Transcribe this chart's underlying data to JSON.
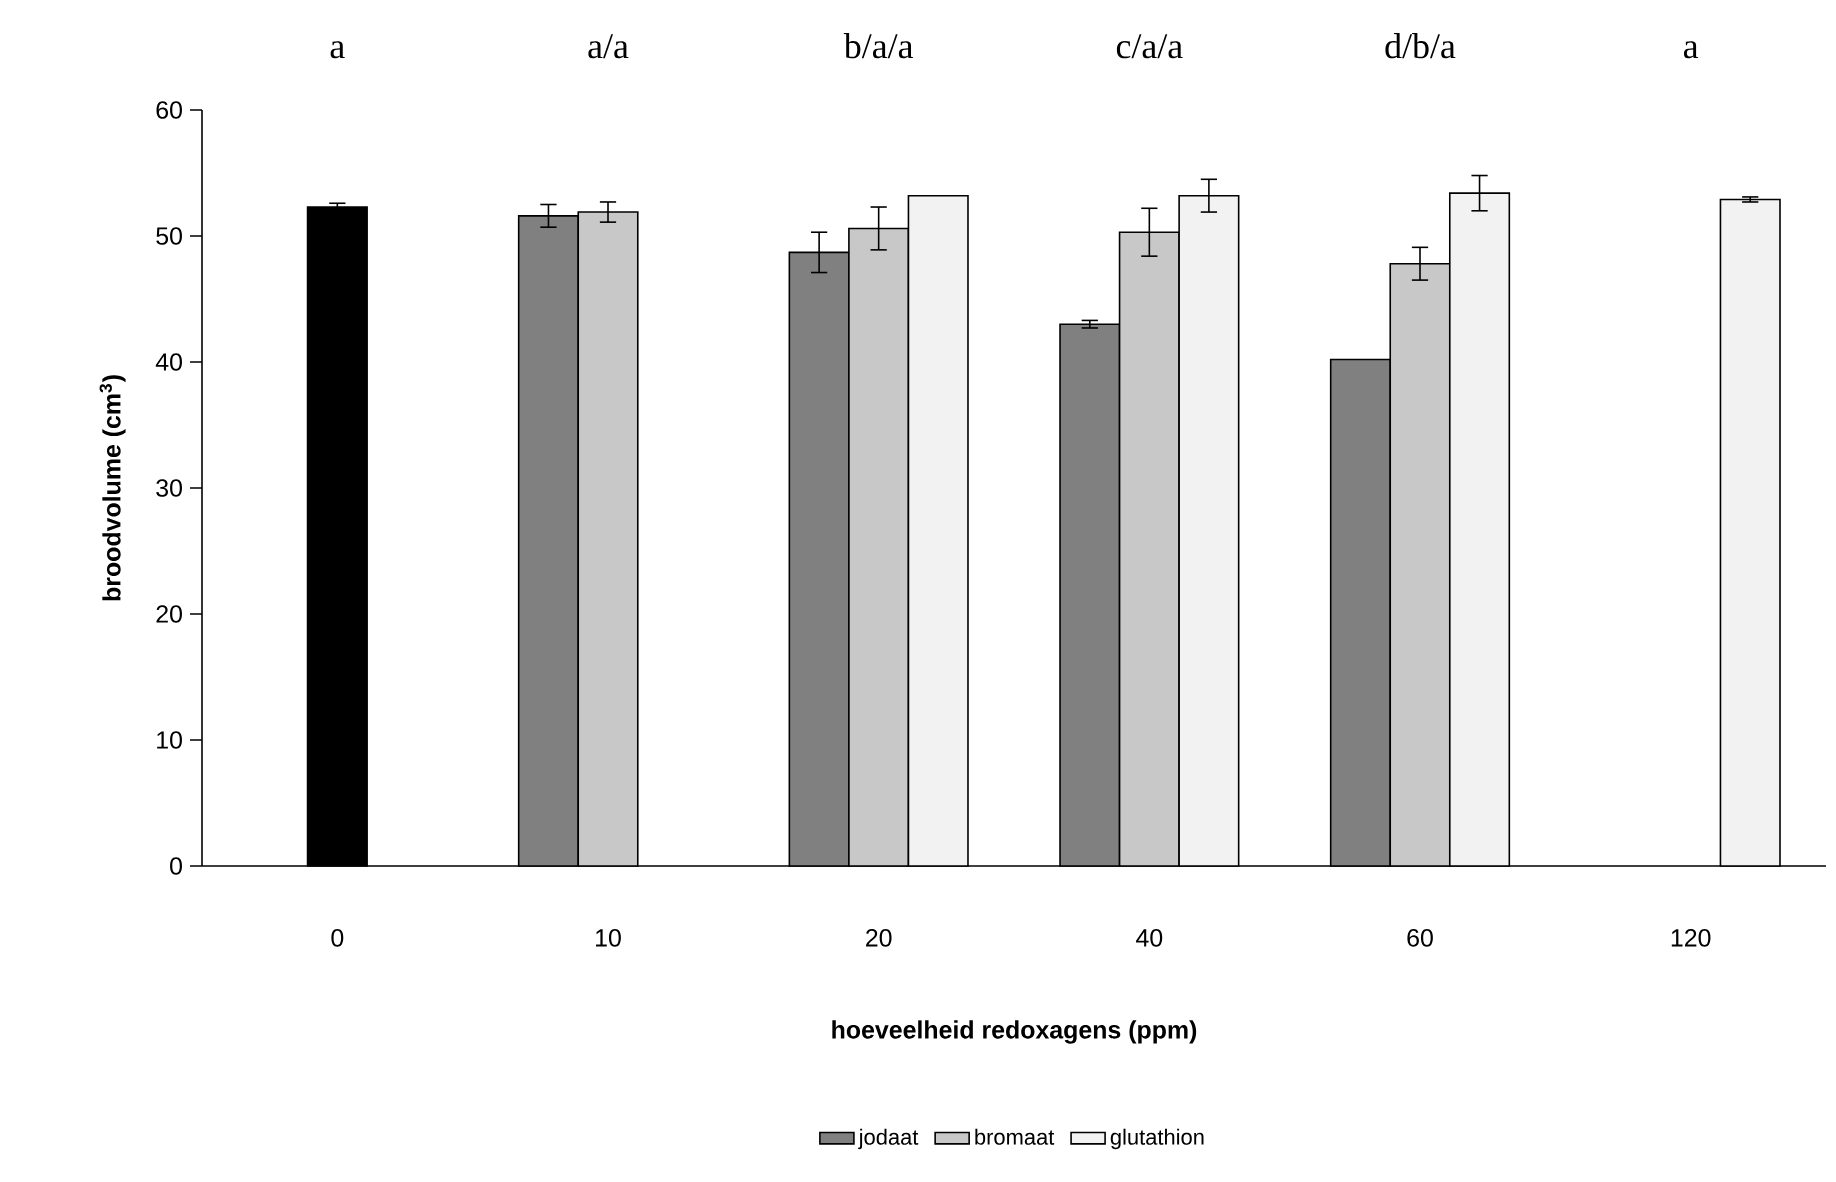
{
  "chart_data": {
    "type": "bar",
    "xlabel": "hoeveelheid redoxagens (ppm)",
    "ylabel": "broodvolume (cm$^{3}$)",
    "categories": [
      "0",
      "10",
      "20",
      "40",
      "60",
      "120"
    ],
    "ylim": [
      0,
      60
    ],
    "yticks": [
      0,
      10,
      20,
      30,
      40,
      50,
      60
    ],
    "legend": "bottom",
    "grid": false,
    "series": [
      {
        "color": "#000000",
        "values": [
          52.3,
          null,
          null,
          null,
          null,
          null
        ],
        "errors": [
          0.3,
          null,
          null,
          null,
          null,
          null
        ]
      },
      {
        "name": "jodaat",
        "color": "#808080",
        "values": [
          null,
          51.6,
          48.7,
          43.0,
          40.2,
          null
        ],
        "errors": [
          null,
          0.9,
          1.6,
          0.3,
          null,
          null
        ]
      },
      {
        "name": "bromaat",
        "color": "#c8c8c8",
        "values": [
          null,
          51.9,
          50.6,
          50.3,
          47.8,
          null
        ],
        "errors": [
          null,
          0.8,
          1.7,
          1.9,
          1.3,
          null
        ]
      },
      {
        "name": "glutathion",
        "color": "#f2f2f2",
        "values": [
          null,
          null,
          53.2,
          53.2,
          53.4,
          52.9
        ],
        "errors": [
          null,
          null,
          null,
          1.3,
          1.4,
          0.2
        ]
      }
    ],
    "annotations": [
      "a",
      "a/a",
      "b/a/a",
      "c/a/a",
      "d/b/a",
      "a"
    ]
  }
}
